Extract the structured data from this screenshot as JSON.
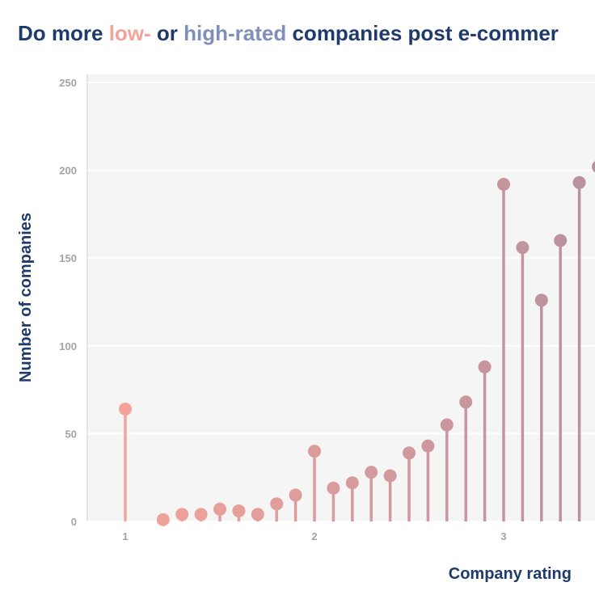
{
  "title": {
    "prefix": "Do more ",
    "low": "low-",
    "mid": " or ",
    "high": "high-rated",
    "suffix": " companies post e-commer"
  },
  "colors": {
    "title": "#1f3b6b",
    "low": "#f4a39a",
    "high": "#7f8fb9",
    "panel": "#f5f5f5",
    "grid": "#ffffff",
    "tick": "#a3a3a3"
  },
  "chart_data": {
    "type": "lollipop",
    "xlabel": "Company rating",
    "ylabel": "Number of companies",
    "xlim": [
      0.8,
      3.5
    ],
    "ylim": [
      0,
      250
    ],
    "x_ticks": [
      1,
      2,
      3
    ],
    "y_ticks": [
      0,
      50,
      100,
      150,
      200,
      250
    ],
    "grid": true,
    "x": [
      1.0,
      1.2,
      1.3,
      1.4,
      1.5,
      1.6,
      1.7,
      1.8,
      1.9,
      2.0,
      2.1,
      2.2,
      2.3,
      2.4,
      2.5,
      2.6,
      2.7,
      2.8,
      2.9,
      3.0,
      3.1,
      3.2,
      3.3,
      3.4,
      3.5
    ],
    "values": [
      64,
      1,
      4,
      4,
      7,
      6,
      4,
      10,
      15,
      40,
      19,
      22,
      28,
      26,
      39,
      43,
      55,
      68,
      88,
      192,
      156,
      126,
      160,
      193,
      202
    ],
    "color_scale": {
      "low": "#f4a39a",
      "high": "#b8919e"
    }
  }
}
